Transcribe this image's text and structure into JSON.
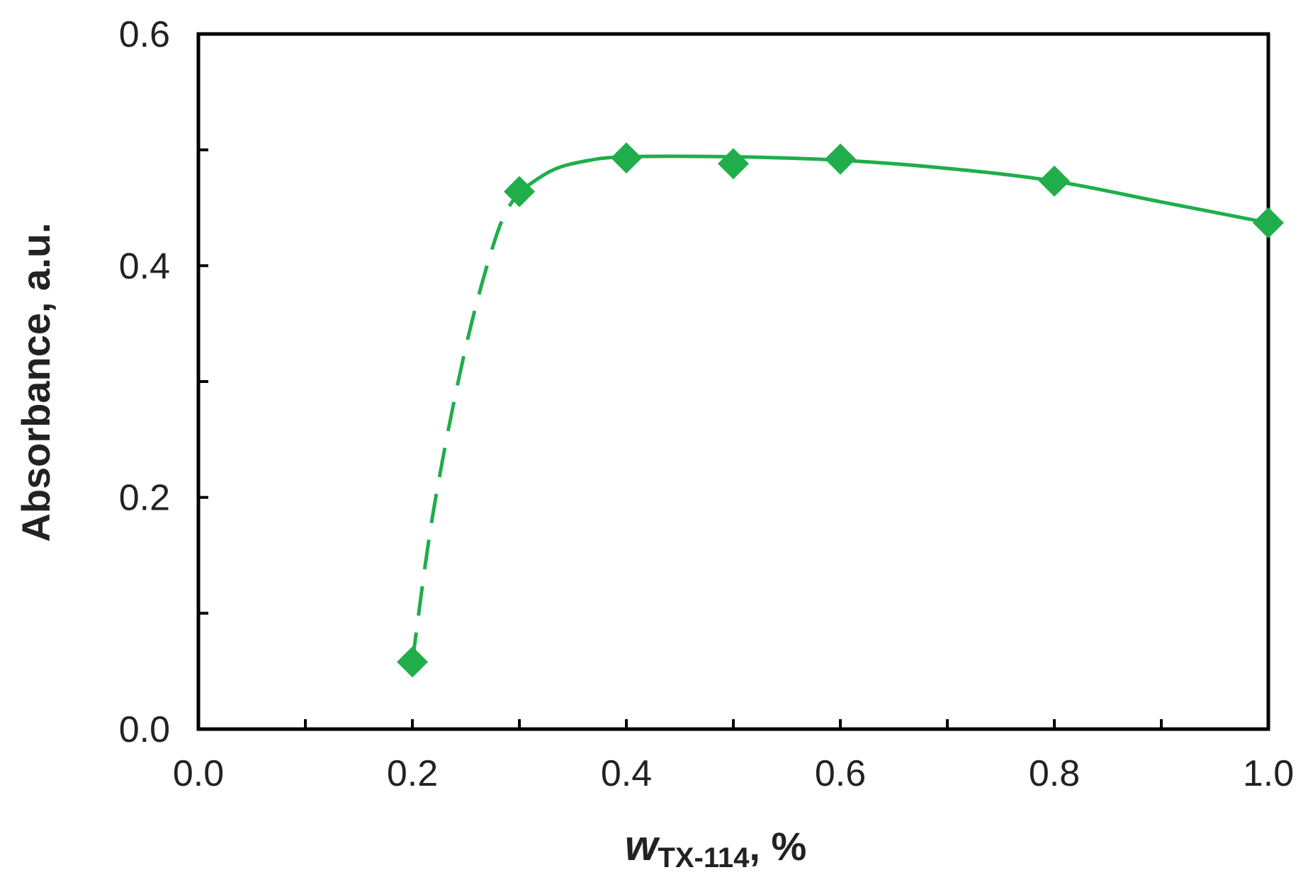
{
  "chart_data": {
    "type": "line",
    "title": "",
    "xlabel": {
      "main": "w",
      "subscript": "TX-114",
      "suffix": ", %"
    },
    "ylabel": "Absorbance, a.u.",
    "xlim": [
      0.0,
      1.0
    ],
    "ylim": [
      0.0,
      0.6
    ],
    "x_ticks": [
      {
        "value": 0.0,
        "label": "0.0"
      },
      {
        "value": 0.2,
        "label": "0.2"
      },
      {
        "value": 0.4,
        "label": "0.4"
      },
      {
        "value": 0.6,
        "label": "0.6"
      },
      {
        "value": 0.8,
        "label": "0.8"
      },
      {
        "value": 1.0,
        "label": "1.0"
      }
    ],
    "x_minor_ticks": [
      0.1,
      0.3,
      0.5,
      0.7,
      0.9
    ],
    "y_ticks": [
      {
        "value": 0.0,
        "label": "0.0"
      },
      {
        "value": 0.2,
        "label": "0.2"
      },
      {
        "value": 0.4,
        "label": "0.4"
      },
      {
        "value": 0.6,
        "label": "0.6"
      }
    ],
    "y_minor_ticks": [
      0.1,
      0.3,
      0.5
    ],
    "grid": false,
    "series": [
      {
        "marker": "diamond",
        "color": "#1fae4b",
        "points": [
          {
            "x": 0.2,
            "y": 0.058
          },
          {
            "x": 0.3,
            "y": 0.464
          },
          {
            "x": 0.4,
            "y": 0.493
          },
          {
            "x": 0.5,
            "y": 0.488
          },
          {
            "x": 0.6,
            "y": 0.492
          },
          {
            "x": 0.8,
            "y": 0.473
          },
          {
            "x": 1.0,
            "y": 0.437
          }
        ],
        "dashed_segment": [
          {
            "x": 0.2,
            "y": 0.058
          },
          {
            "x": 0.22,
            "y": 0.19
          },
          {
            "x": 0.25,
            "y": 0.33
          },
          {
            "x": 0.28,
            "y": 0.43
          },
          {
            "x": 0.3,
            "y": 0.464
          }
        ],
        "solid_segment": [
          {
            "x": 0.3,
            "y": 0.464
          },
          {
            "x": 0.33,
            "y": 0.482
          },
          {
            "x": 0.36,
            "y": 0.49
          },
          {
            "x": 0.4,
            "y": 0.494
          },
          {
            "x": 0.5,
            "y": 0.494
          },
          {
            "x": 0.6,
            "y": 0.491
          },
          {
            "x": 0.7,
            "y": 0.484
          },
          {
            "x": 0.8,
            "y": 0.473
          },
          {
            "x": 0.9,
            "y": 0.455
          },
          {
            "x": 1.0,
            "y": 0.437
          }
        ]
      }
    ]
  }
}
